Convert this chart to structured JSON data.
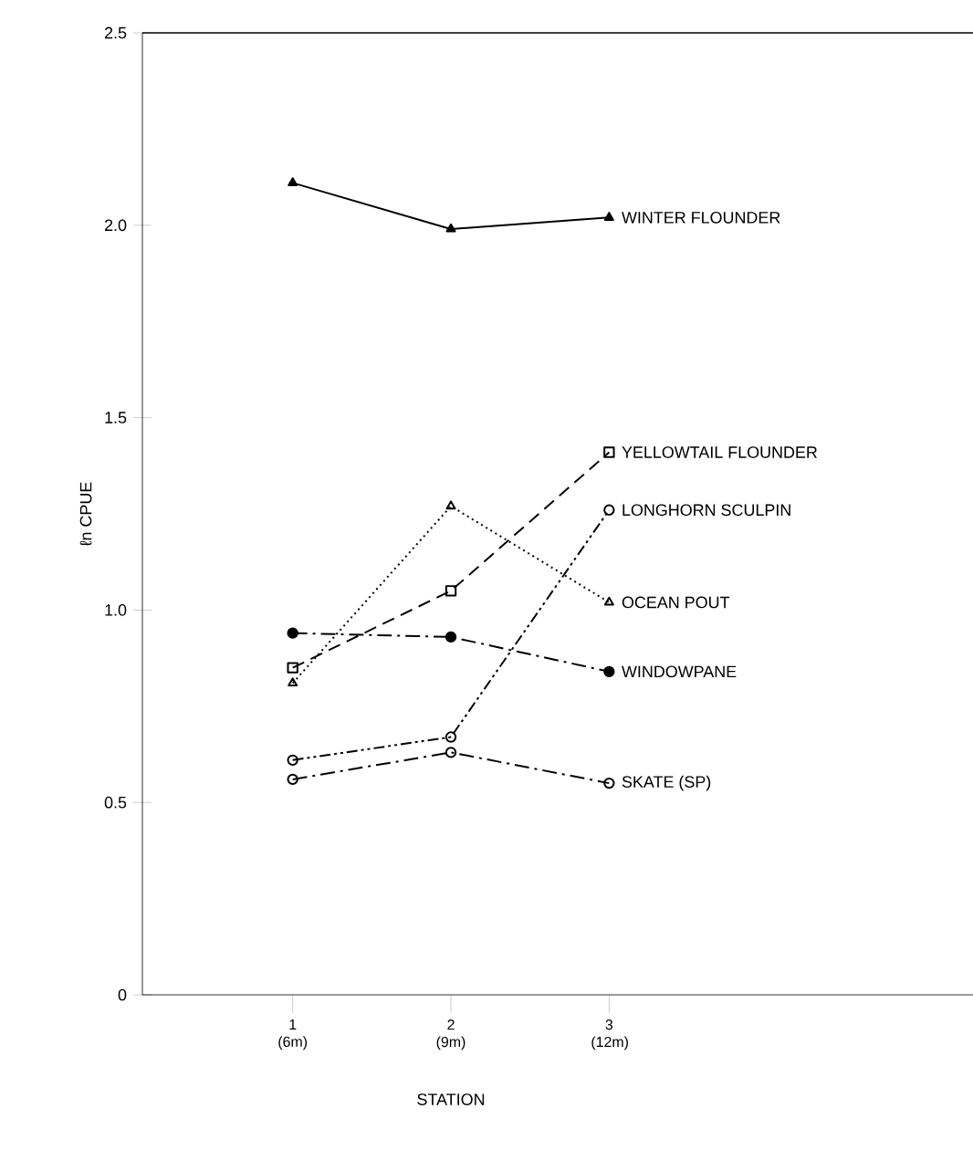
{
  "chart_data": {
    "type": "line",
    "xlabel": "STATION",
    "ylabel": "ℓn CPUE",
    "categories": [
      "1 (6m)",
      "2 (9m)",
      "3 (12m)"
    ],
    "ylim": [
      0,
      2.5
    ],
    "yticks": [
      {
        "value": 0,
        "label": "0"
      },
      {
        "value": 0.5,
        "label": "0.5"
      },
      {
        "value": 1.0,
        "label": "1.0"
      },
      {
        "value": 1.5,
        "label": "1.5"
      },
      {
        "value": 2.0,
        "label": "2.0"
      },
      {
        "value": 2.5,
        "label": "2.5"
      }
    ],
    "grid": false,
    "series": [
      {
        "name": "WINTER FLOUNDER",
        "color": "#000000",
        "marker": "triangle",
        "line_style": "solid",
        "values": [
          2.11,
          1.99,
          2.02
        ]
      },
      {
        "name": "YELLOWTAIL FLOUNDER",
        "color": "#000000",
        "marker": "square",
        "line_style": "dashed",
        "values": [
          0.85,
          1.05,
          1.41
        ]
      },
      {
        "name": "LONGHORN SCULPIN",
        "color": "#000000",
        "marker": "circle",
        "line_style": "dashdotdot",
        "values": [
          0.61,
          0.67,
          1.26
        ]
      },
      {
        "name": "OCEAN POUT",
        "color": "#000000",
        "marker": "triangle",
        "line_style": "dotted",
        "values": [
          0.81,
          1.27,
          1.02
        ]
      },
      {
        "name": "WINDOWPANE",
        "color": "#000000",
        "marker": "circle",
        "line_style": "dashdot",
        "values": [
          0.94,
          0.93,
          0.84
        ]
      },
      {
        "name": "SKATE (SP)",
        "color": "#000000",
        "marker": "circle",
        "line_style": "dashdot",
        "values": [
          0.56,
          0.63,
          0.55
        ]
      }
    ]
  }
}
